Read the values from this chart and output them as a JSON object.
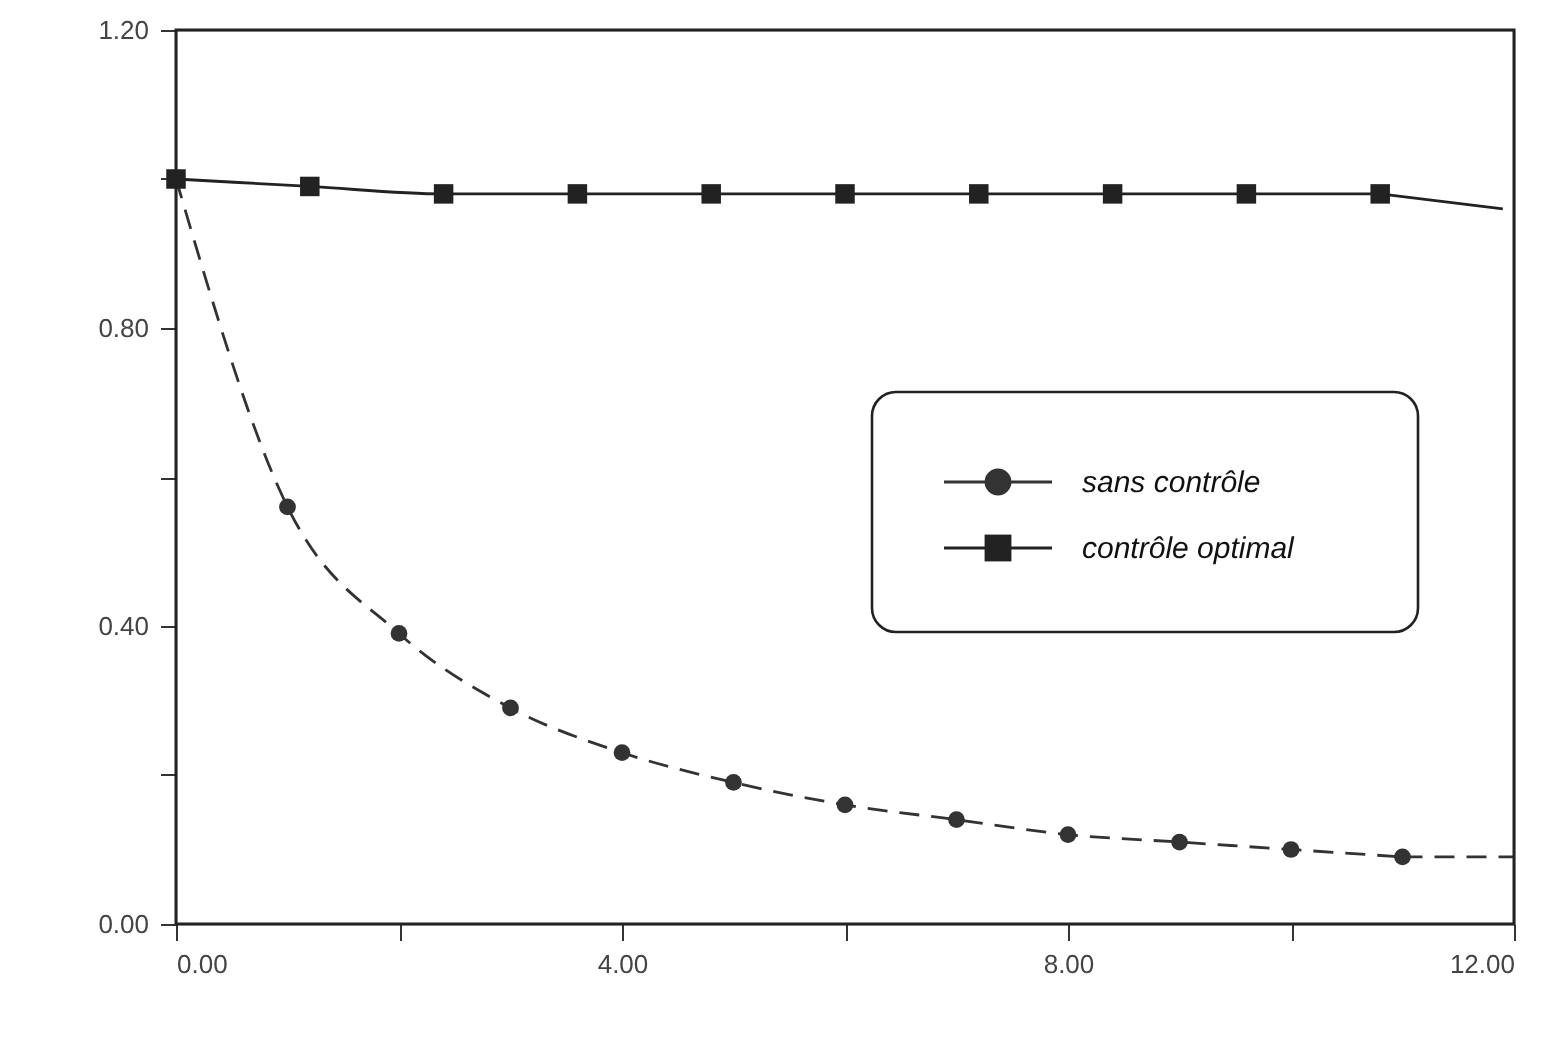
{
  "chart_data": {
    "type": "line",
    "xlim": [
      0,
      12
    ],
    "ylim": [
      0,
      1.2
    ],
    "xticks": [
      {
        "value": 0,
        "label": "0.00"
      },
      {
        "value": 2,
        "label": null
      },
      {
        "value": 4,
        "label": "4.00"
      },
      {
        "value": 6,
        "label": null
      },
      {
        "value": 8,
        "label": "8.00"
      },
      {
        "value": 10,
        "label": null
      },
      {
        "value": 12,
        "label": "12.00"
      }
    ],
    "yticks": [
      {
        "value": 0,
        "label": "0.00"
      },
      {
        "value": 0.2,
        "label": null
      },
      {
        "value": 0.4,
        "label": "0.40"
      },
      {
        "value": 0.6,
        "label": null
      },
      {
        "value": 0.8,
        "label": "0.80"
      },
      {
        "value": 1.0,
        "label": null
      },
      {
        "value": 1.2,
        "label": "1.20"
      }
    ],
    "grid": false,
    "legend": "right",
    "series": [
      {
        "name": "sans contrôle",
        "color": "#333333",
        "line_style": "dashed",
        "marker": "circle",
        "x": [
          0,
          1,
          2,
          3,
          4,
          5,
          6,
          7,
          8,
          9,
          10,
          11
        ],
        "values": [
          1.0,
          0.56,
          0.39,
          0.29,
          0.23,
          0.19,
          0.16,
          0.14,
          0.12,
          0.11,
          0.1,
          0.09
        ]
      },
      {
        "color": "#333333",
        "line_style": "dashed",
        "marker": "none",
        "x": [
          11,
          12
        ],
        "values": [
          0.09,
          0.09
        ]
      },
      {
        "name": "contrôle optimal",
        "color": "#222222",
        "line_style": "solid",
        "marker": "square",
        "x": [
          0,
          1.2,
          2.4,
          3.6,
          4.8,
          6,
          7.2,
          8.4,
          9.6,
          10.8
        ],
        "values": [
          1.0,
          0.99,
          0.98,
          0.98,
          0.98,
          0.98,
          0.98,
          0.98,
          0.98,
          0.98
        ]
      },
      {
        "color": "#222222",
        "line_style": "solid",
        "marker": "none",
        "x": [
          10.8,
          11.9
        ],
        "values": [
          0.98,
          0.96
        ]
      }
    ]
  }
}
